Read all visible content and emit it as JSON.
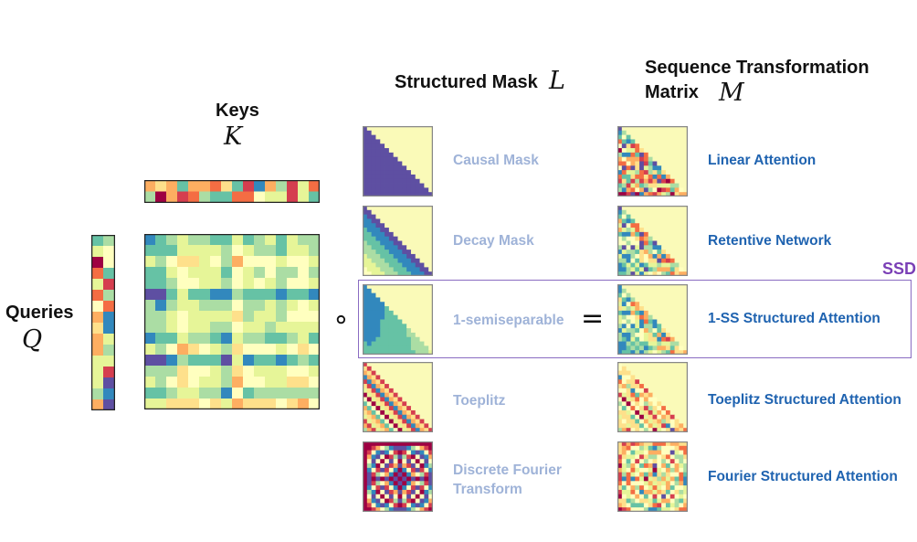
{
  "headers": {
    "keys": "Keys",
    "keys_symbol": "K",
    "queries": "Queries",
    "queries_symbol": "Q",
    "mask": "Structured Mask",
    "mask_symbol": "L",
    "transform_line1": "Sequence Transformation",
    "transform_line2": "Matrix",
    "transform_symbol": "M"
  },
  "operators": {
    "hadamard": "∘",
    "equals": "="
  },
  "rows": [
    {
      "mask_label": "Causal Mask",
      "result_label": "Linear Attention"
    },
    {
      "mask_label": "Decay Mask",
      "result_label": "Retentive Network"
    },
    {
      "mask_label": "1-semiseparable",
      "result_label": "1-SS Structured Attention"
    },
    {
      "mask_label": "Toeplitz",
      "result_label": "Toeplitz Structured Attention"
    },
    {
      "mask_label_line1": "Discrete Fourier",
      "mask_label_line2": "Transform",
      "result_label": "Fourier Structured Attention"
    }
  ],
  "highlight": {
    "label": "SSD"
  },
  "colors": {
    "mask_text": "#9fb3d8",
    "result_text": "#1f63b0",
    "highlight": "#7a3fb6",
    "palette": [
      "#5e4fa2",
      "#3288bd",
      "#66c2a5",
      "#abdda4",
      "#e6f598",
      "#ffffbf",
      "#fee08b",
      "#fdae61",
      "#f46d43",
      "#d53e4f",
      "#9e0142"
    ]
  }
}
